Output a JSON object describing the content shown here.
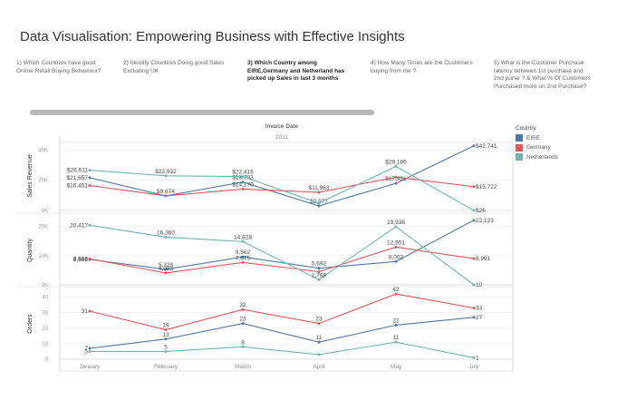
{
  "title": "Data Visualisation: Empowering Business with Effective Insights",
  "tabs": [
    {
      "lines": [
        "1) Which Countries have good",
        "Online Retail Buying Behaviour?"
      ],
      "active": false
    },
    {
      "lines": [
        "2) Identify Countires Doing  good Sales",
        "Excluding UK"
      ],
      "active": false
    },
    {
      "lines": [
        "3) Which Country among",
        "EIRE,Germany and Netherland has",
        "picked up Sales in last 3 months"
      ],
      "active": true
    },
    {
      "lines": [
        "4) How Many Times are the Customers",
        "buying from me ?"
      ],
      "active": false
    },
    {
      "lines": [
        "5) What is the Customer Purchase",
        "latency between 1st purchase and",
        "2nd purse ? & What % Of Customers",
        "Purchased more on 2nd Purchase?"
      ],
      "active": false
    }
  ],
  "colors": {
    "EIRE": "#4e79a7",
    "Germany": "#e15759",
    "Netherlands": "#6fb5ae"
  },
  "legend": {
    "title": "Country",
    "items": [
      "EIRE",
      "Germany",
      "Netherlands"
    ]
  },
  "chart_data": {
    "type": "line",
    "header": "Invoice Date",
    "year": "2011",
    "categories": [
      "January",
      "February",
      "March",
      "April",
      "May",
      "July"
    ],
    "panels": [
      {
        "label": "Sales Revenue",
        "ylim": [
          0,
          45000
        ],
        "ticks": [
          0,
          20000,
          40000
        ],
        "tick_labels": [
          "0K",
          "20K",
          "40K"
        ],
        "series": [
          {
            "name": "EIRE",
            "values": [
              21657,
              9674,
              18783,
              2977,
              17921,
              42741
            ],
            "labels": [
              "$21,657",
              "$9,674",
              "$18,783",
              "$2,977",
              "$17,921",
              "$42,741"
            ]
          },
          {
            "name": "Germany",
            "values": [
              16451,
              9674,
              14170,
              11963,
              22000,
              15722
            ],
            "labels": [
              "$16,451",
              "",
              "$14,170",
              "$11,963",
              "",
              "$15,722"
            ]
          },
          {
            "name": "Netherlands",
            "values": [
              26611,
              22932,
              22416,
              4800,
              29186,
              26
            ],
            "labels": [
              "$26,611",
              "$22,932",
              "$22,416",
              "",
              "$29,186",
              "$26"
            ]
          }
        ]
      },
      {
        "label": "Quantity",
        "ylim": [
          0,
          23000
        ],
        "ticks": [
          0,
          10000,
          20000
        ],
        "tick_labels": [
          "0K",
          "10K",
          "20K"
        ],
        "series": [
          {
            "name": "EIRE",
            "values": [
              8688,
              5328,
              9562,
              5692,
              8002,
              22123
            ],
            "labels": [
              "8,688",
              "5,328",
              "9,562",
              "5,692",
              "8,002",
              "22,123"
            ]
          },
          {
            "name": "Germany",
            "values": [
              8906,
              4083,
              7675,
              4500,
              12951,
              8991
            ],
            "labels": [
              "8,906",
              "4,083",
              "7,675",
              "",
              "12,951",
              "8,991"
            ]
          },
          {
            "name": "Netherlands",
            "values": [
              20417,
              16360,
              14828,
              1768,
              19936,
              10
            ],
            "labels": [
              "20,417",
              "16,360",
              "14,828",
              "1,768",
              "19,936",
              "10"
            ]
          }
        ]
      },
      {
        "label": "Orders",
        "ylim": [
          0,
          45
        ],
        "ticks": [
          0,
          10,
          20,
          30,
          40
        ],
        "tick_labels": [
          "0",
          "10",
          "20",
          "30",
          "40"
        ],
        "series": [
          {
            "name": "EIRE",
            "values": [
              7,
              13,
              23,
              11,
              22,
              27
            ],
            "labels": [
              "7",
              "13",
              "23",
              "11",
              "22",
              "27"
            ]
          },
          {
            "name": "Germany",
            "values": [
              31,
              19,
              32,
              23,
              42,
              33
            ],
            "labels": [
              "31",
              "19",
              "32",
              "23",
              "42",
              "33"
            ]
          },
          {
            "name": "Netherlands",
            "values": [
              5,
              5,
              8,
              3,
              11,
              1
            ],
            "labels": [
              "5",
              "5",
              "8",
              "",
              "11",
              "1"
            ]
          }
        ]
      }
    ]
  }
}
